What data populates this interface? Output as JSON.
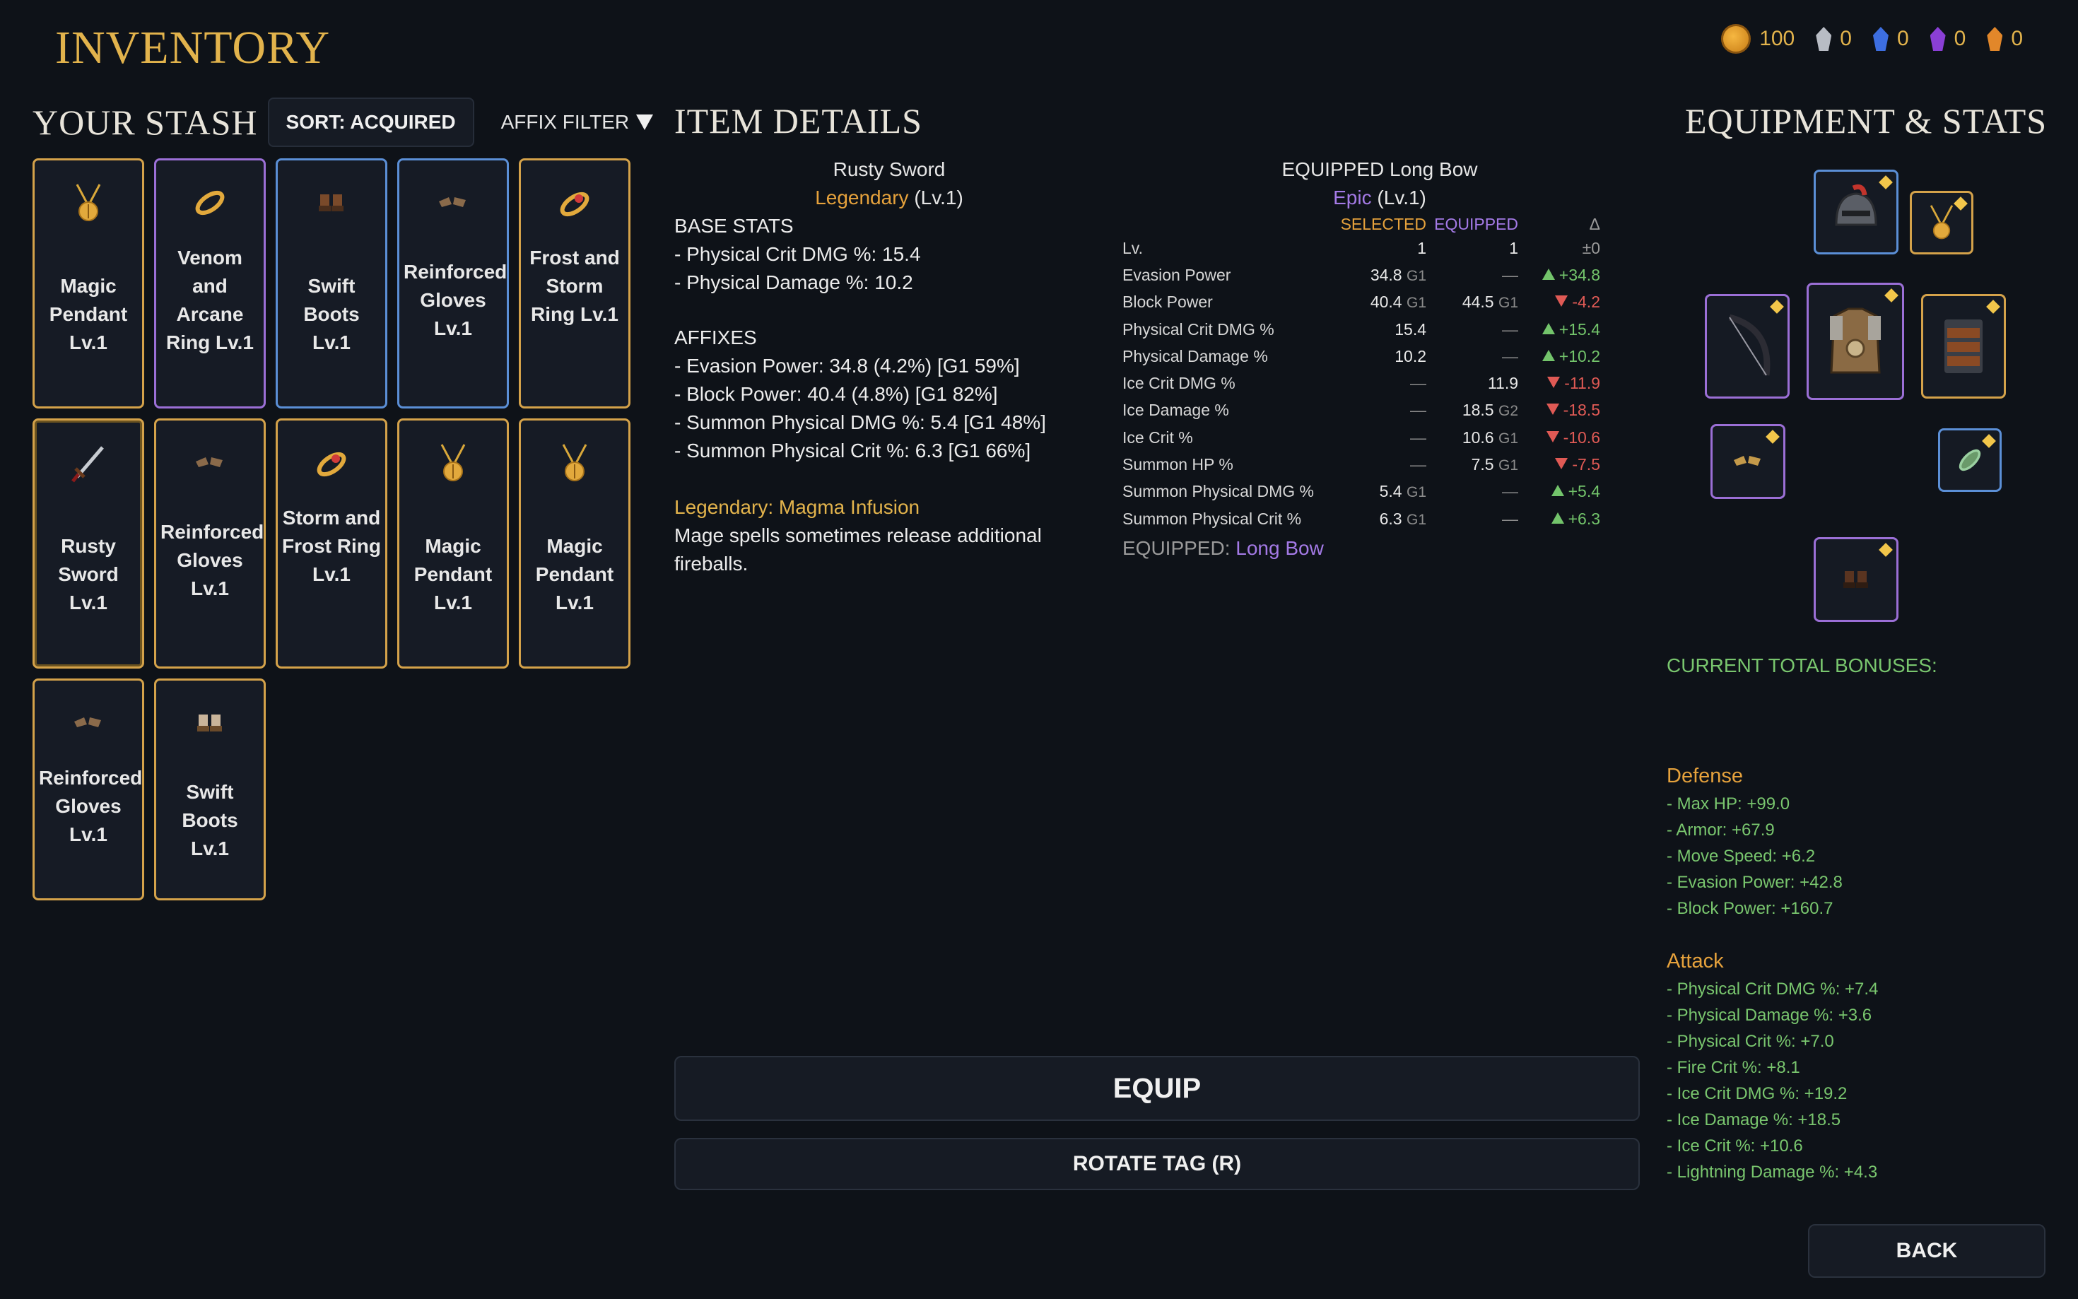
{
  "title": "INVENTORY",
  "currency": [
    {
      "icon": "gold-coin-icon",
      "value": "100",
      "color": "#e2a030"
    },
    {
      "icon": "silver-gem-icon",
      "value": "0",
      "color": "#b8bcc4"
    },
    {
      "icon": "blue-gem-icon",
      "value": "0",
      "color": "#3d6ee0"
    },
    {
      "icon": "purple-gem-icon",
      "value": "0",
      "color": "#8a3fd6"
    },
    {
      "icon": "orange-gem-icon",
      "value": "0",
      "color": "#e2872a"
    }
  ],
  "stash": {
    "title": "YOUR STASH",
    "sort_label": "SORT: ACQUIRED",
    "filter_label": "AFFIX FILTER",
    "items": [
      {
        "name": "Magic Pendant Lv.1",
        "rarity": "legendary",
        "icon": "pendant-icon"
      },
      {
        "name": "Venom and Arcane Ring Lv.1",
        "rarity": "epic",
        "icon": "ring-icon"
      },
      {
        "name": "Swift Boots Lv.1",
        "rarity": "rare",
        "icon": "boots-icon"
      },
      {
        "name": "Reinforced Gloves Lv.1",
        "rarity": "rare",
        "icon": "gloves-icon"
      },
      {
        "name": "Frost and Storm Ring Lv.1",
        "rarity": "legendary",
        "icon": "ruby-ring-icon"
      },
      {
        "name": "Rusty Sword Lv.1",
        "rarity": "legendary",
        "icon": "sword-icon",
        "selected": true
      },
      {
        "name": "Reinforced Gloves Lv.1",
        "rarity": "legendary",
        "icon": "gloves-icon"
      },
      {
        "name": "Storm and Frost Ring Lv.1",
        "rarity": "legendary",
        "icon": "ruby-ring-icon"
      },
      {
        "name": "Magic Pendant Lv.1",
        "rarity": "legendary",
        "icon": "pendant-icon"
      },
      {
        "name": "Magic Pendant Lv.1",
        "rarity": "legendary",
        "icon": "pendant-icon"
      },
      {
        "name": "Reinforced Gloves Lv.1",
        "rarity": "legendary",
        "icon": "gloves-icon"
      },
      {
        "name": "Swift Boots Lv.1",
        "rarity": "legendary",
        "icon": "boots-icon"
      }
    ]
  },
  "details": {
    "title": "ITEM DETAILS",
    "item_name": "Rusty Sword",
    "rarity": "Legendary",
    "level": "(Lv.1)",
    "base_stats_header": "BASE STATS",
    "base_stats": [
      "- Physical Crit DMG %: 15.4",
      "- Physical Damage %: 10.2"
    ],
    "affixes_header": "AFFIXES",
    "affixes": [
      "- Evasion Power: 34.8 (4.2%) [G1 59%]",
      "- Block Power: 40.4 (4.8%) [G1 82%]",
      "- Summon Physical DMG %: 5.4 [G1 48%]",
      "- Summon Physical Crit %: 6.3 [G1 66%]"
    ],
    "legendary_title": "Legendary: Magma Infusion",
    "legendary_desc": [
      "Mage spells sometimes release additional",
      "fireballs."
    ]
  },
  "comparison": {
    "title": "EQUIPPED Long Bow",
    "rarity": "Epic",
    "level": "(Lv.1)",
    "col_selected": "SELECTED",
    "col_equipped": "EQUIPPED",
    "col_delta": "Δ",
    "rows": [
      {
        "name": "Lv.",
        "sel": "1",
        "sel_g": "",
        "eq": "1",
        "eq_g": "",
        "delta": "±0",
        "dir": "neutral"
      },
      {
        "name": "Evasion Power",
        "sel": "34.8",
        "sel_g": "G1",
        "eq": "—",
        "eq_g": "",
        "delta": "+34.8",
        "dir": "up"
      },
      {
        "name": "Block Power",
        "sel": "40.4",
        "sel_g": "G1",
        "eq": "44.5",
        "eq_g": "G1",
        "delta": "-4.2",
        "dir": "down"
      },
      {
        "name": "Physical Crit DMG %",
        "sel": "15.4",
        "sel_g": "",
        "eq": "—",
        "eq_g": "",
        "delta": "+15.4",
        "dir": "up"
      },
      {
        "name": "Physical Damage %",
        "sel": "10.2",
        "sel_g": "",
        "eq": "—",
        "eq_g": "",
        "delta": "+10.2",
        "dir": "up"
      },
      {
        "name": "Ice Crit DMG %",
        "sel": "—",
        "sel_g": "",
        "eq": "11.9",
        "eq_g": "",
        "delta": "-11.9",
        "dir": "down"
      },
      {
        "name": "Ice Damage %",
        "sel": "—",
        "sel_g": "",
        "eq": "18.5",
        "eq_g": "G2",
        "delta": "-18.5",
        "dir": "down"
      },
      {
        "name": "Ice Crit %",
        "sel": "—",
        "sel_g": "",
        "eq": "10.6",
        "eq_g": "G1",
        "delta": "-10.6",
        "dir": "down"
      },
      {
        "name": "Summon HP %",
        "sel": "—",
        "sel_g": "",
        "eq": "7.5",
        "eq_g": "G1",
        "delta": "-7.5",
        "dir": "down"
      },
      {
        "name": "Summon Physical DMG %",
        "sel": "5.4",
        "sel_g": "G1",
        "eq": "—",
        "eq_g": "",
        "delta": "+5.4",
        "dir": "up"
      },
      {
        "name": "Summon Physical Crit %",
        "sel": "6.3",
        "sel_g": "G1",
        "eq": "—",
        "eq_g": "",
        "delta": "+6.3",
        "dir": "up"
      }
    ],
    "footer_label": "EQUIPPED:",
    "footer_item": "Long Bow"
  },
  "buttons": {
    "equip": "EQUIP",
    "rotate": "ROTATE TAG (R)",
    "back": "BACK"
  },
  "equipment": {
    "title": "EQUIPMENT & STATS",
    "slots": [
      {
        "slot": "helmet",
        "icon": "helmet-icon",
        "rarity": "rare"
      },
      {
        "slot": "amulet",
        "icon": "pendant-icon",
        "rarity": "legendary"
      },
      {
        "slot": "weapon",
        "icon": "bow-icon",
        "rarity": "epic"
      },
      {
        "slot": "chest",
        "icon": "chest-armor-icon",
        "rarity": "epic"
      },
      {
        "slot": "belt",
        "icon": "belt-icon",
        "rarity": "legendary"
      },
      {
        "slot": "gloves",
        "icon": "gloves-icon",
        "rarity": "epic"
      },
      {
        "slot": "ring",
        "icon": "ring-icon",
        "rarity": "rare"
      },
      {
        "slot": "boots",
        "icon": "boots-icon",
        "rarity": "epic"
      }
    ]
  },
  "bonuses": {
    "title": "CURRENT TOTAL BONUSES:",
    "defense_header": "Defense",
    "defense": [
      "- Max HP: +99.0",
      "- Armor: +67.9",
      "- Move Speed: +6.2",
      "- Evasion Power: +42.8",
      "- Block Power: +160.7"
    ],
    "attack_header": "Attack",
    "attack": [
      "- Physical Crit DMG %: +7.4",
      "- Physical Damage %: +3.6",
      "- Physical Crit %: +7.0",
      "- Fire Crit %: +8.1",
      "- Ice Crit DMG %: +19.2",
      "- Ice Damage %: +18.5",
      "- Ice Crit %: +10.6",
      "- Lightning Damage %: +4.3"
    ]
  }
}
